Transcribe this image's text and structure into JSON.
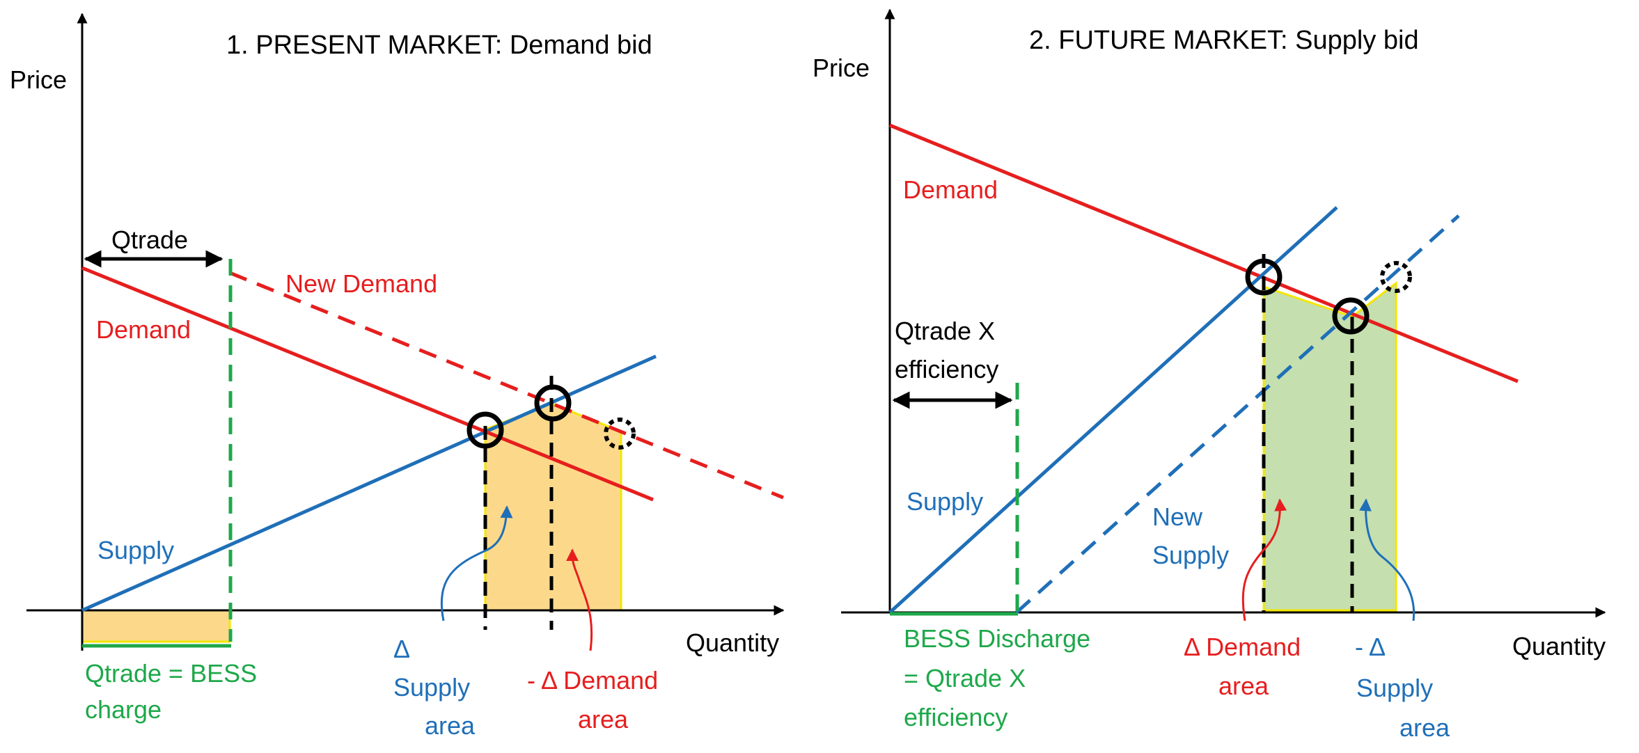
{
  "colors": {
    "red": "#e61e1e",
    "blue": "#1f6fb8",
    "green": "#1ea84a",
    "black": "#000000",
    "orange_fill": "#fcd98a",
    "green_fill": "#c5dfae",
    "yellow_edge": "#f2e600"
  },
  "left_panel": {
    "title": "1. PRESENT MARKET: Demand bid",
    "y_axis_label": "Price",
    "x_axis_label": "Quantity",
    "qtrade_label": "Qtrade",
    "new_demand_label": "New Demand",
    "demand_label": "Demand",
    "supply_label": "Supply",
    "bess_charge_line1": "Qtrade = BESS",
    "bess_charge_line2": "charge",
    "delta_supply_line1": "Δ",
    "delta_supply_line2": "Supply",
    "delta_supply_line3": "area",
    "neg_delta_demand_line1": "- Δ Demand",
    "neg_delta_demand_line2": "area"
  },
  "right_panel": {
    "title": "2. FUTURE MARKET: Supply bid",
    "y_axis_label": "Price",
    "x_axis_label": "Quantity",
    "demand_label": "Demand",
    "supply_label": "Supply",
    "new_supply_line1": "New",
    "new_supply_line2": "Supply",
    "qtrade_eff_line1": "Qtrade X",
    "qtrade_eff_line2": "efficiency",
    "bess_discharge_line1": "BESS Discharge",
    "bess_discharge_line2": "= Qtrade X",
    "bess_discharge_line3": "efficiency",
    "delta_demand_line1": "Δ Demand",
    "delta_demand_line2": "area",
    "neg_delta_supply_line1": "- Δ",
    "neg_delta_supply_line2": "Supply",
    "neg_delta_supply_line3": "area"
  }
}
